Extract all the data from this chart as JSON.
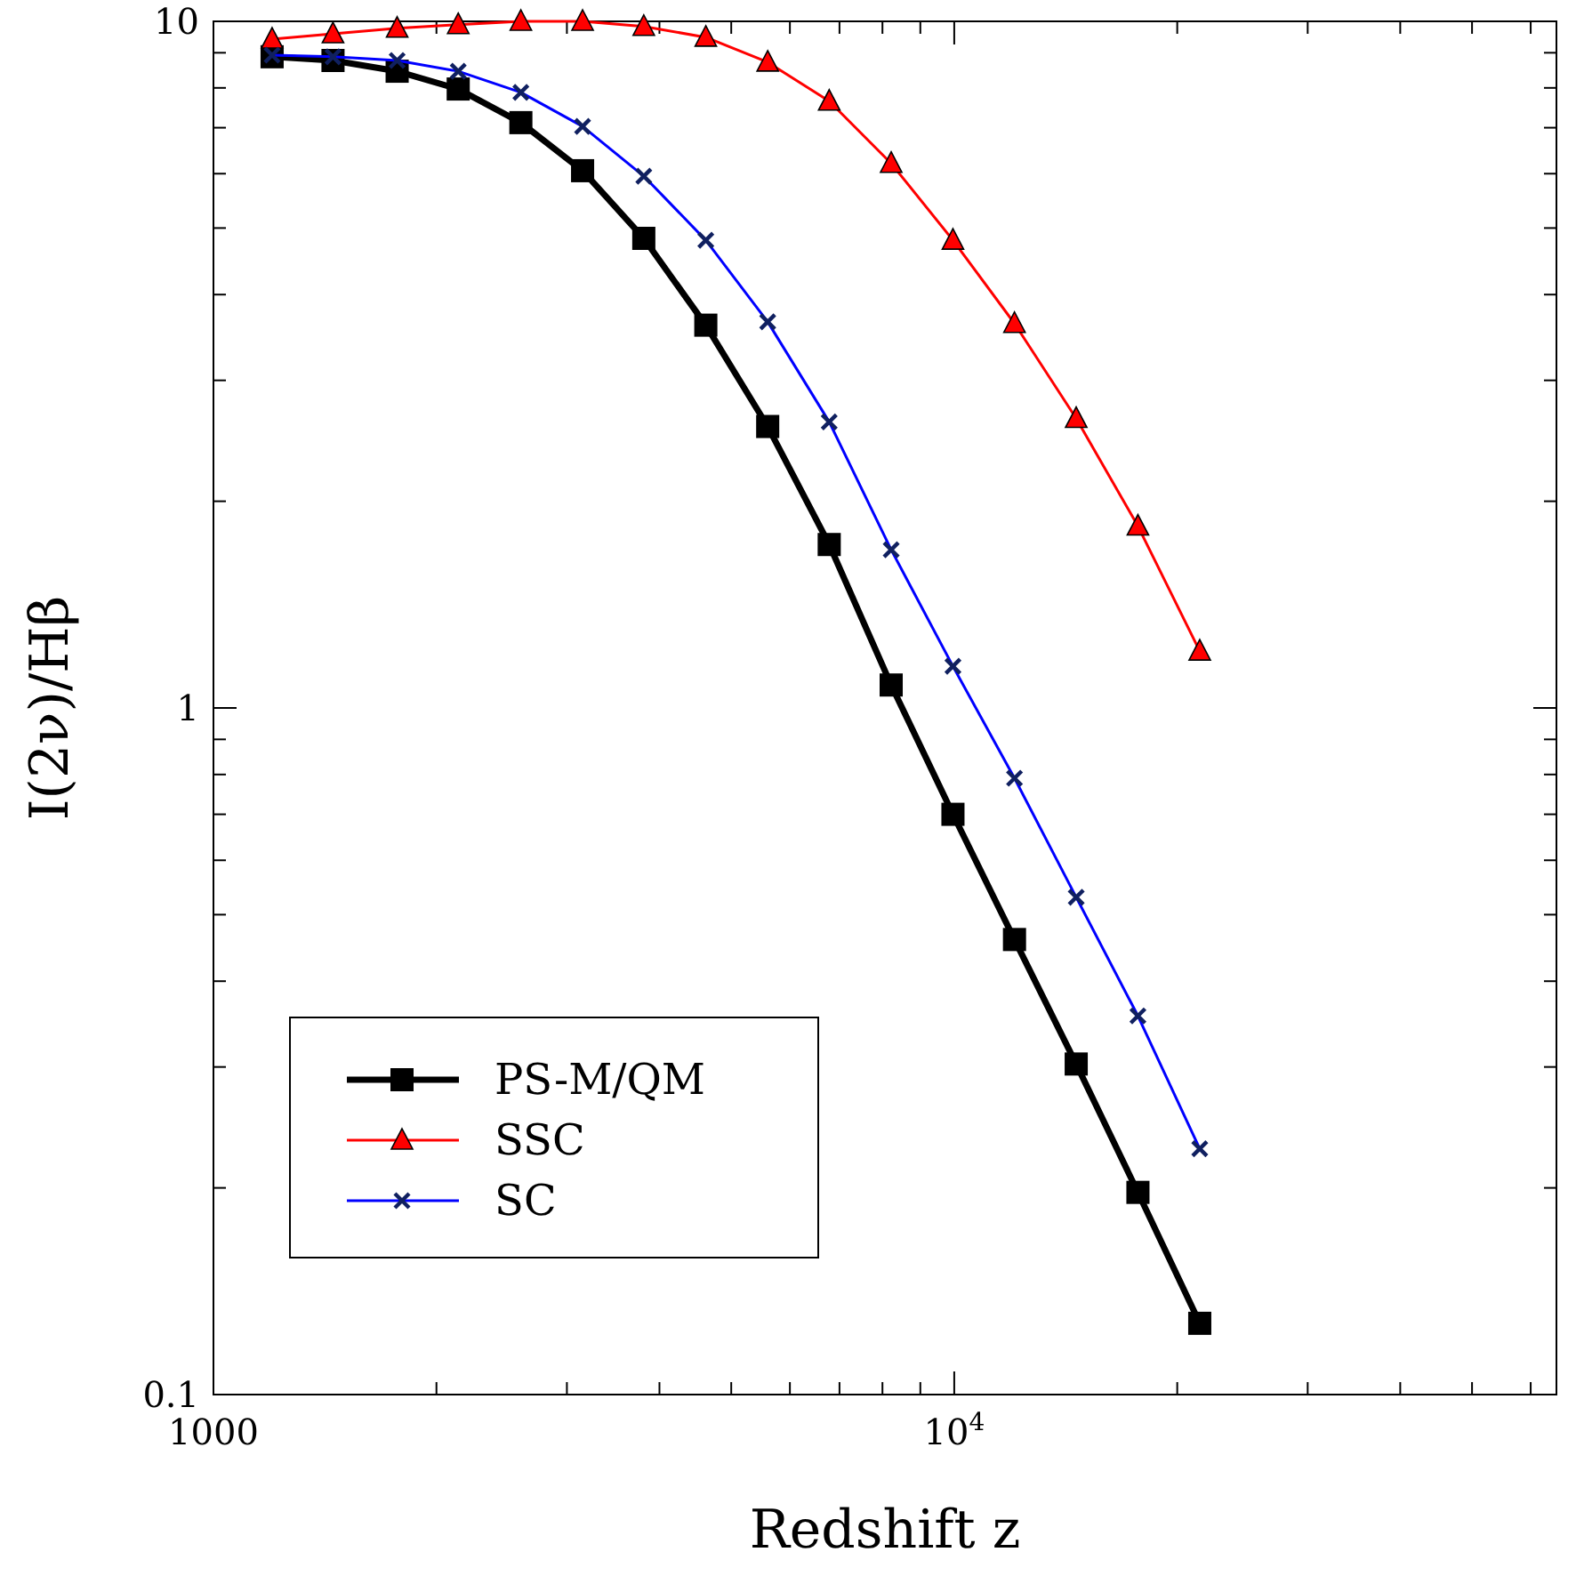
{
  "chart_data": {
    "type": "line",
    "xlabel": "Redshift z",
    "ylabel": "I(2ν)/Hβ",
    "log": "xy",
    "grid": false,
    "legend": "bottom left",
    "x": [
      1200,
      1450,
      1770,
      2140,
      2600,
      3150,
      3810,
      4620,
      5600,
      6780,
      8220,
      9960,
      12060,
      14610,
      17700,
      21450
    ],
    "xlim": [
      1000,
      65000
    ],
    "ylim": [
      0.1,
      10
    ],
    "xticks": [
      1000,
      {
        "value": 2000,
        "label": null
      },
      {
        "value": 3000,
        "label": null
      },
      {
        "value": 4000,
        "label": null
      },
      {
        "value": 5000,
        "label": null
      },
      {
        "value": 6000,
        "label": null
      },
      {
        "value": 7000,
        "label": null
      },
      {
        "value": 8000,
        "label": null
      },
      {
        "value": 9000,
        "label": null
      },
      {
        "value": 10000,
        "label": "10$^{4}$"
      },
      {
        "value": 20000,
        "label": null
      },
      {
        "value": 30000,
        "label": null
      },
      {
        "value": 40000,
        "label": null
      },
      {
        "value": 50000,
        "label": null
      },
      {
        "value": 60000,
        "label": null
      }
    ],
    "yticks": [
      0.1,
      {
        "value": 0.2,
        "label": null
      },
      {
        "value": 0.3,
        "label": null
      },
      {
        "value": 0.4,
        "label": null
      },
      {
        "value": 0.5,
        "label": null
      },
      {
        "value": 0.6,
        "label": null
      },
      {
        "value": 0.7,
        "label": null
      },
      {
        "value": 0.8,
        "label": null
      },
      {
        "value": 0.9,
        "label": null
      },
      1,
      {
        "value": 2,
        "label": null
      },
      {
        "value": 3,
        "label": null
      },
      {
        "value": 4,
        "label": null
      },
      {
        "value": 5,
        "label": null
      },
      {
        "value": 6,
        "label": null
      },
      {
        "value": 7,
        "label": null
      },
      {
        "value": 8,
        "label": null
      },
      {
        "value": 9,
        "label": null
      },
      10
    ],
    "series": [
      {
        "name": "PS-M/QM",
        "color": "#000000",
        "marker": "square",
        "values": [
          8.88,
          8.77,
          8.46,
          7.97,
          7.12,
          6.06,
          4.83,
          3.61,
          2.57,
          1.73,
          1.08,
          0.7,
          0.46,
          0.303,
          0.197,
          0.127
        ]
      },
      {
        "name": "SSC",
        "color": "#ff0000",
        "marker": "triangle",
        "values": [
          9.42,
          9.59,
          9.77,
          9.89,
          10.0,
          10.0,
          9.83,
          9.48,
          8.72,
          7.65,
          6.21,
          4.8,
          3.63,
          2.64,
          1.84,
          1.21
        ]
      },
      {
        "name": "SC",
        "color": "#0000ff",
        "marker": "cross",
        "values": [
          8.93,
          8.88,
          8.77,
          8.46,
          7.88,
          7.03,
          5.95,
          4.8,
          3.65,
          2.61,
          1.7,
          1.15,
          0.79,
          0.53,
          0.356,
          0.228
        ]
      }
    ]
  }
}
